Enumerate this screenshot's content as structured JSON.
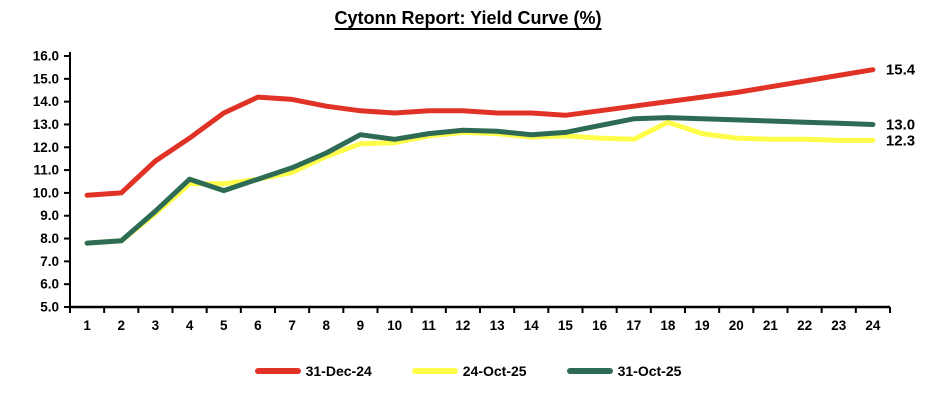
{
  "title": "Cytonn Report: Yield Curve (%)",
  "chart_data": {
    "type": "line",
    "title": "Cytonn Report: Yield Curve (%)",
    "xlabel": "",
    "ylabel": "",
    "grid": "off",
    "legend_position": "bottom",
    "ylim": [
      5.0,
      16.0
    ],
    "ytick_step": 1.0,
    "ytick_labels": [
      "16.0",
      "15.0",
      "14.0",
      "13.0",
      "12.0",
      "11.0",
      "10.0",
      "9.0",
      "8.0",
      "7.0",
      "6.0",
      "5.0"
    ],
    "x_categories": [
      "1",
      "2",
      "3",
      "4",
      "5",
      "6",
      "7",
      "8",
      "9",
      "10",
      "11",
      "12",
      "13",
      "14",
      "15",
      "16",
      "17",
      "18",
      "19",
      "20",
      "21",
      "22",
      "23",
      "24"
    ],
    "series": [
      {
        "name": "31-Dec-24",
        "color": "#e03226",
        "end_label": "15.4",
        "values": [
          9.9,
          10.0,
          11.4,
          12.4,
          13.5,
          14.2,
          14.1,
          13.8,
          13.6,
          13.5,
          13.6,
          13.6,
          13.5,
          13.5,
          13.4,
          13.6,
          13.8,
          14.0,
          14.2,
          14.4,
          14.65,
          14.9,
          15.15,
          15.4
        ]
      },
      {
        "name": "24-Oct-25",
        "color": "#fdfd4a",
        "end_label": "12.3",
        "values": [
          7.8,
          7.9,
          9.1,
          10.4,
          10.4,
          10.6,
          10.9,
          11.6,
          12.15,
          12.2,
          12.5,
          12.65,
          12.6,
          12.45,
          12.5,
          12.4,
          12.35,
          13.1,
          12.6,
          12.4,
          12.35,
          12.35,
          12.3,
          12.3
        ]
      },
      {
        "name": "31-Oct-25",
        "color": "#2d6b55",
        "end_label": "13.0",
        "values": [
          7.8,
          7.9,
          9.2,
          10.6,
          10.1,
          10.6,
          11.1,
          11.75,
          12.55,
          12.35,
          12.6,
          12.75,
          12.7,
          12.55,
          12.65,
          12.95,
          13.25,
          13.3,
          13.25,
          13.2,
          13.15,
          13.1,
          13.05,
          13.0
        ]
      }
    ],
    "axis_color": "#000000",
    "label_color": "#000000"
  }
}
